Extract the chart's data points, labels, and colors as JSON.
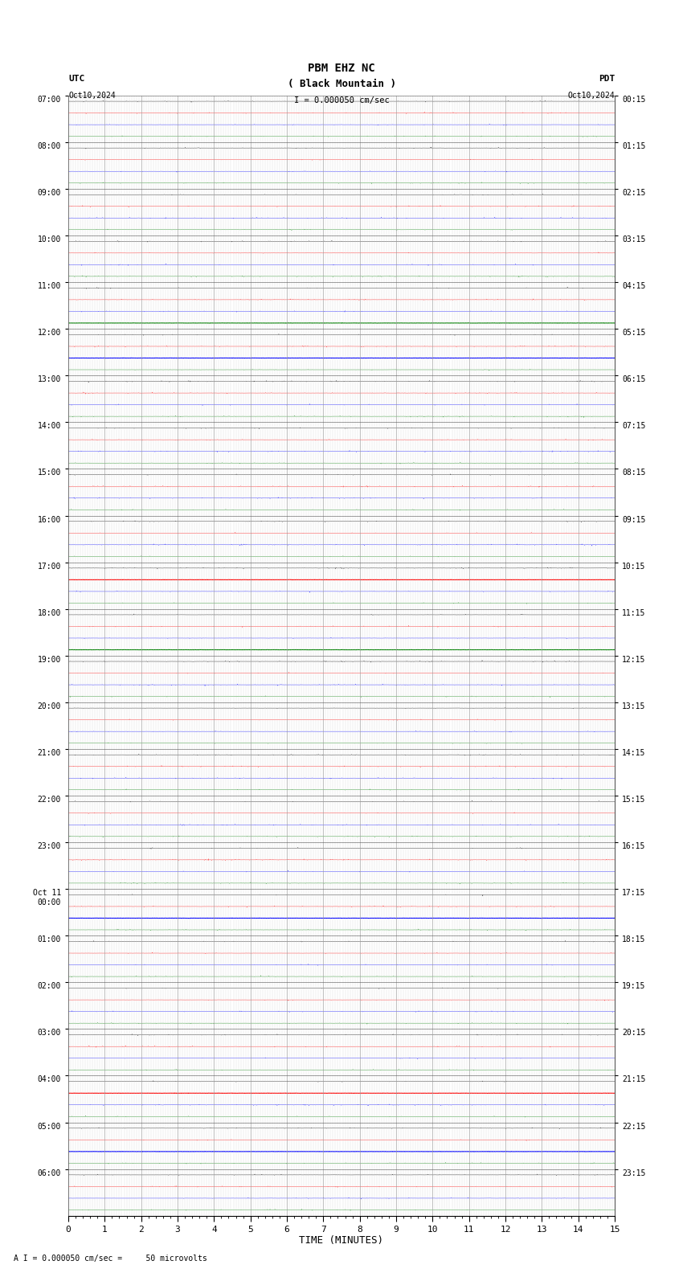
{
  "title_line1": "PBM EHZ NC",
  "title_line2": "( Black Mountain )",
  "scale_label": "I = 0.000050 cm/sec",
  "utc_label": "UTC",
  "pdt_label": "PDT",
  "date_left": "Oct10,2024",
  "date_right": "Oct10,2024",
  "bottom_label": "A I = 0.000050 cm/sec =     50 microvolts",
  "xlabel": "TIME (MINUTES)",
  "xmin": 0,
  "xmax": 15,
  "xticks": [
    0,
    1,
    2,
    3,
    4,
    5,
    6,
    7,
    8,
    9,
    10,
    11,
    12,
    13,
    14,
    15
  ],
  "num_rows": 24,
  "channels_per_row": 4,
  "colors": [
    "black",
    "red",
    "blue",
    "green"
  ],
  "bg_color": "#ffffff",
  "grid_color": "#999999",
  "fig_width": 8.5,
  "fig_height": 15.84,
  "utc_times": [
    "07:00",
    "08:00",
    "09:00",
    "10:00",
    "11:00",
    "12:00",
    "13:00",
    "14:00",
    "15:00",
    "16:00",
    "17:00",
    "18:00",
    "19:00",
    "20:00",
    "21:00",
    "22:00",
    "23:00",
    "Oct 11\n00:00",
    "01:00",
    "02:00",
    "03:00",
    "04:00",
    "05:00",
    "06:00"
  ],
  "pdt_times": [
    "00:15",
    "01:15",
    "02:15",
    "03:15",
    "04:15",
    "05:15",
    "06:15",
    "07:15",
    "08:15",
    "09:15",
    "10:15",
    "11:15",
    "12:15",
    "13:15",
    "14:15",
    "15:15",
    "16:15",
    "17:15",
    "18:15",
    "19:15",
    "20:15",
    "21:15",
    "22:15",
    "23:15"
  ],
  "seed": 42,
  "base_noise": 0.008,
  "spike_noise": 0.03,
  "solid_line_rows": {
    "4": {
      "channel": 3,
      "color": "green"
    },
    "5": {
      "channel": 2,
      "color": "blue"
    },
    "10": {
      "channel": 1,
      "color": "red"
    },
    "11": {
      "channel": 3,
      "color": "green"
    },
    "17": {
      "channel": 2,
      "color": "blue"
    },
    "21": {
      "channel": 1,
      "color": "red"
    },
    "22": {
      "channel": 2,
      "color": "blue"
    }
  }
}
